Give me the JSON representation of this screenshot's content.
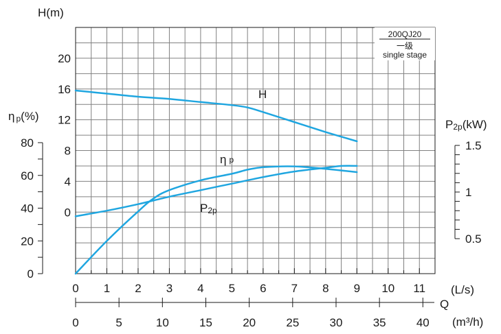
{
  "chart_data": {
    "type": "line",
    "model_label": {
      "line1": "200QJ20",
      "line2": "一级",
      "line3": "single  stage"
    },
    "axes": {
      "x_ls": {
        "label": "(L/s)",
        "range": [
          0,
          11.5
        ],
        "ticks": [
          "0",
          "1",
          "2",
          "3",
          "4",
          "5",
          "6",
          "7",
          "8",
          "9",
          "10",
          "11"
        ]
      },
      "x_m3h": {
        "label": "(m³/h)",
        "q_label": "Q",
        "range": [
          0,
          41.4
        ],
        "ticks": [
          "0",
          "5",
          "10",
          "15",
          "20",
          "25",
          "30",
          "35",
          "40"
        ]
      },
      "y_head": {
        "label": "H(m)",
        "range": [
          -8,
          24
        ],
        "ticks": [
          "20",
          "16",
          "12",
          "8",
          "4",
          "0"
        ]
      },
      "y_eff": {
        "label_main": "η",
        "label_sub": "p",
        "label_unit": "(%)",
        "range": [
          0,
          80
        ],
        "ticks": [
          "80",
          "60",
          "40",
          "20",
          "0"
        ]
      },
      "y_power": {
        "label_main": "P",
        "label_sub": "2p",
        "label_unit": "(kW)",
        "range": [
          0.5,
          1.5
        ],
        "ticks": [
          "1.5",
          "1",
          "0.5"
        ]
      }
    },
    "series": [
      {
        "name": "H",
        "axis": "y_head",
        "x": [
          0,
          1,
          2,
          3,
          4,
          5,
          5.5,
          6,
          7,
          8,
          9
        ],
        "y": [
          15.8,
          15.4,
          15.0,
          14.7,
          14.3,
          13.9,
          13.6,
          13.0,
          11.7,
          10.4,
          9.2
        ]
      },
      {
        "name": "η p",
        "axis": "y_eff",
        "x": [
          0,
          1,
          2,
          2.5,
          3,
          4,
          5,
          5.5,
          6,
          7,
          8,
          9
        ],
        "y": [
          0,
          20,
          38,
          46,
          51,
          57,
          61,
          63.5,
          65,
          65.5,
          64,
          62
        ]
      },
      {
        "name": "P2p",
        "axis": "y_power",
        "x": [
          0,
          1,
          2,
          3,
          4,
          5,
          6,
          7,
          8,
          8.5,
          9
        ],
        "y": [
          0.74,
          0.8,
          0.87,
          0.95,
          1.02,
          1.09,
          1.16,
          1.22,
          1.26,
          1.28,
          1.28
        ]
      }
    ],
    "curve_labels": {
      "head": "H",
      "eff_main": "η",
      "eff_sub": "p",
      "power_main": "P",
      "power_sub": "2p"
    },
    "colors": {
      "curve": "#1fa6e0",
      "grid": "#808080",
      "axis": "#1a1a1a"
    },
    "grid": true
  }
}
